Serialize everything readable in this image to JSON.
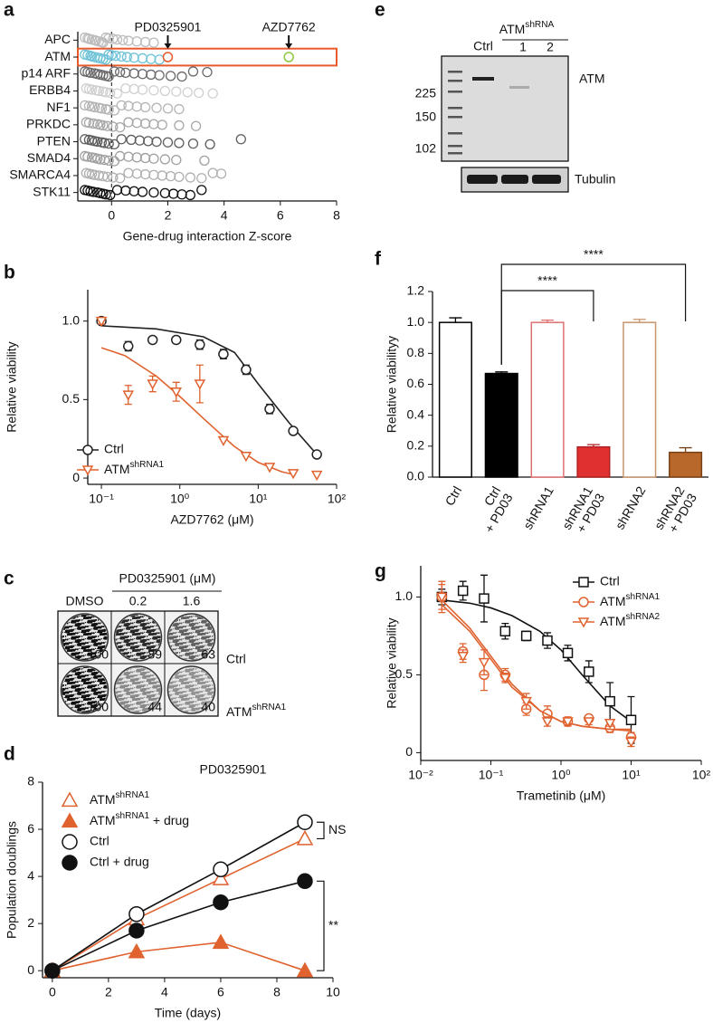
{
  "panel_labels": [
    "a",
    "b",
    "c",
    "d",
    "e",
    "f",
    "g"
  ],
  "chart_data": [
    {
      "type": "strip",
      "xlabel": "Gene-drug interaction Z-score",
      "xlim": [
        -1.2,
        8
      ],
      "xticks": [
        0,
        2,
        4,
        6,
        8
      ],
      "categories": [
        "APC",
        "ATM",
        "p14 ARF",
        "ERBB4",
        "NF1",
        "PRKDC",
        "PTEN",
        "SMAD4",
        "SMARCA4",
        "STK11"
      ],
      "colors": [
        "#bdbdbd",
        "#6fc3d8",
        "#6a6a6a",
        "#d0d0d0",
        "#b5b5b5",
        "#a8a8a8",
        "#5e5e5e",
        "#a0a0a0",
        "#b0b0b0",
        "#111111"
      ],
      "values": [
        [
          -0.95,
          -0.85,
          -0.8,
          -0.7,
          -0.6,
          -0.55,
          -0.45,
          -0.35,
          -0.3,
          -0.2,
          -0.1,
          0.05,
          0.2,
          0.4,
          0.6,
          0.9,
          1.2,
          1.5
        ],
        [
          -0.95,
          -0.85,
          -0.75,
          -0.7,
          -0.6,
          -0.5,
          -0.4,
          -0.3,
          -0.2,
          -0.1,
          0.0,
          0.15,
          0.35,
          0.55,
          0.8,
          1.1,
          1.4,
          1.7
        ],
        [
          -0.95,
          -0.85,
          -0.75,
          -0.6,
          -0.5,
          -0.4,
          -0.3,
          -0.2,
          -0.1,
          0.1,
          0.3,
          0.5,
          0.8,
          1.1,
          1.4,
          1.7,
          2.1,
          2.5,
          2.9,
          3.4
        ],
        [
          -0.9,
          -0.8,
          -0.7,
          -0.55,
          -0.45,
          -0.3,
          -0.2,
          -0.05,
          0.2,
          0.5,
          0.8,
          1.1,
          1.5,
          1.9,
          2.3,
          2.7,
          3.1,
          3.6
        ],
        [
          -0.95,
          -0.8,
          -0.7,
          -0.6,
          -0.45,
          -0.35,
          -0.2,
          -0.1,
          0.1,
          0.35,
          0.6,
          0.9,
          1.2,
          1.6,
          2.0,
          2.4
        ],
        [
          -0.9,
          -0.8,
          -0.65,
          -0.5,
          -0.4,
          -0.3,
          -0.15,
          0.05,
          0.3,
          0.6,
          0.9,
          1.2,
          1.5,
          1.8,
          2.4,
          3.0
        ],
        [
          -0.95,
          -0.8,
          -0.7,
          -0.6,
          -0.5,
          -0.35,
          -0.25,
          -0.1,
          0.1,
          0.35,
          0.7,
          1.0,
          1.3,
          1.6,
          2.0,
          2.4,
          2.9,
          3.5,
          4.6
        ],
        [
          -0.95,
          -0.85,
          -0.7,
          -0.6,
          -0.5,
          -0.4,
          -0.25,
          -0.1,
          0.1,
          0.3,
          0.6,
          0.9,
          1.2,
          1.5,
          1.9,
          2.3,
          3.3
        ],
        [
          -0.9,
          -0.8,
          -0.7,
          -0.6,
          -0.45,
          -0.3,
          -0.15,
          0.05,
          0.3,
          0.6,
          0.9,
          1.2,
          1.5,
          1.8,
          2.1,
          2.4,
          2.8,
          3.2,
          3.6,
          3.9
        ],
        [
          -0.95,
          -0.85,
          -0.75,
          -0.65,
          -0.5,
          -0.4,
          -0.3,
          -0.2,
          -0.05,
          0.2,
          0.5,
          0.8,
          1.1,
          1.5,
          1.9,
          2.2,
          2.5,
          2.8,
          3.2
        ]
      ],
      "highlight": {
        "category": "ATM",
        "color": "#e8592b"
      },
      "annotations": [
        {
          "text": "PD0325901",
          "x": 2.0,
          "color": "#e8592b"
        },
        {
          "text": "AZD7762",
          "x": 6.3,
          "color": "#8cc63f"
        }
      ]
    },
    {
      "type": "scatter",
      "xlabel": "AZD7762 (μM)",
      "ylabel": "Relative viability",
      "xscale": "log",
      "xlim": [
        0.067,
        100
      ],
      "xticks": [
        {
          "value": 0.1,
          "label": "10⁻¹"
        },
        {
          "value": 1,
          "label": "10⁰"
        },
        {
          "value": 10,
          "label": "10¹"
        },
        {
          "value": 100,
          "label": "10²"
        }
      ],
      "ylim": [
        -0.04,
        1.2
      ],
      "yticks": [
        0,
        0.5,
        {
          "value": 1,
          "label": "1.0"
        }
      ],
      "legend": "lower left",
      "series": [
        {
          "name": "Ctrl",
          "color": "#222222",
          "marker": "circle",
          "filled": false,
          "x": [
            0.1,
            0.22,
            0.45,
            0.9,
            1.8,
            3.6,
            7,
            14,
            28,
            56
          ],
          "values": [
            1.0,
            0.84,
            0.88,
            0.88,
            0.85,
            0.79,
            0.69,
            0.44,
            0.3,
            0.15
          ],
          "errors": [
            null,
            0.03,
            0.02,
            null,
            0.03,
            0.03,
            0.03,
            0.03,
            null,
            null
          ],
          "fit": {
            "x": [
              0.1,
              0.5,
              2,
              5,
              10,
              25,
              56
            ],
            "values": [
              0.97,
              0.95,
              0.9,
              0.8,
              0.6,
              0.35,
              0.15
            ]
          }
        },
        {
          "name": "ATMshRNA1",
          "color": "#e0622f",
          "marker": "triangle-down",
          "filled": false,
          "x": [
            0.1,
            0.22,
            0.45,
            0.9,
            1.8,
            3.6,
            7,
            14,
            28,
            56
          ],
          "values": [
            1.0,
            0.53,
            0.6,
            0.55,
            0.6,
            0.24,
            0.14,
            0.07,
            0.03,
            0.02
          ],
          "errors": [
            0.02,
            0.06,
            0.05,
            0.06,
            0.12,
            null,
            null,
            null,
            null,
            null
          ],
          "fit": {
            "x": [
              0.1,
              0.2,
              0.5,
              1,
              2,
              5,
              10,
              20,
              30
            ],
            "values": [
              0.83,
              0.78,
              0.65,
              0.52,
              0.38,
              0.2,
              0.1,
              0.04,
              0.02
            ]
          }
        }
      ]
    },
    {
      "type": "line",
      "title": "PD0325901",
      "xlabel": "Time (days)",
      "ylabel": "Population doublings",
      "xlim": [
        -0.35,
        10
      ],
      "xticks": [
        0,
        2,
        4,
        6,
        8,
        10
      ],
      "ylim": [
        -0.3,
        8
      ],
      "yticks": [
        0,
        2,
        4,
        6,
        8
      ],
      "legend": "upper left",
      "x": [
        0,
        3,
        6,
        9
      ],
      "series": [
        {
          "name": "ATMshRNA1",
          "color": "#e0622f",
          "marker": "triangle-up",
          "filled": false,
          "values": [
            0,
            2.2,
            3.9,
            5.6
          ]
        },
        {
          "name": "ATMshRNA1 + drug",
          "color": "#e0622f",
          "marker": "triangle-up",
          "filled": true,
          "values": [
            0,
            0.8,
            1.2,
            0
          ]
        },
        {
          "name": "Ctrl",
          "color": "#111111",
          "marker": "circle",
          "filled": false,
          "values": [
            0,
            2.4,
            4.3,
            6.3
          ]
        },
        {
          "name": "Ctrl + drug",
          "color": "#111111",
          "marker": "circle",
          "filled": true,
          "values": [
            0,
            1.7,
            2.9,
            3.8
          ]
        }
      ],
      "annotations": [
        {
          "text": "NS"
        },
        {
          "text": "**"
        }
      ]
    },
    {
      "type": "bar",
      "ylabel": "Relative viabilityy",
      "ylim": [
        0,
        1.2
      ],
      "yticks": [
        {
          "value": 0,
          "label": "0.0"
        },
        0.2,
        0.4,
        0.6,
        0.8,
        {
          "value": 1,
          "label": "1.0"
        },
        {
          "value": 1.2,
          "label": "1.2"
        }
      ],
      "categories": [
        "Ctrl",
        "Ctrl\n+ PD03",
        "shRNA1",
        "shRNA1\n+ PD03",
        "shRNA2",
        "shRNA2\n+ PD03"
      ],
      "values": [
        1.0,
        0.67,
        1.0,
        0.195,
        1.0,
        0.16
      ],
      "errors": [
        0.03,
        0.01,
        0.015,
        0.015,
        0.02,
        0.03
      ],
      "colors": [
        "#ffffff",
        "#000000",
        "#ffffff",
        "#e03030",
        "#ffffff",
        "#b8682a"
      ],
      "edge_colors": [
        "#000000",
        "#000000",
        "#e07070",
        "#b02020",
        "#c8956a",
        "#7a4015"
      ],
      "annotations": [
        {
          "text": "****"
        },
        {
          "text": "****"
        }
      ]
    },
    {
      "type": "scatter",
      "xlabel": "Trametinib (μM)",
      "ylabel": "Relative viability",
      "xscale": "log",
      "xlim": [
        0.01,
        100
      ],
      "xticks": [
        {
          "value": 0.01,
          "label": "10⁻²"
        },
        {
          "value": 0.1,
          "label": "10⁻¹"
        },
        {
          "value": 1,
          "label": "10⁰"
        },
        {
          "value": 10,
          "label": "10¹"
        },
        {
          "value": 100,
          "label": "10²"
        }
      ],
      "ylim": [
        -0.05,
        1.2
      ],
      "yticks": [
        0,
        0.5,
        {
          "value": 1,
          "label": "1.0"
        }
      ],
      "legend": "upper right",
      "series": [
        {
          "name": "Ctrl",
          "color": "#111111",
          "marker": "square",
          "filled": false,
          "x": [
            0.02,
            0.04,
            0.08,
            0.16,
            0.32,
            0.64,
            1.25,
            2.5,
            5,
            10
          ],
          "values": [
            1.0,
            1.04,
            0.99,
            0.78,
            0.75,
            0.72,
            0.64,
            0.52,
            0.33,
            0.21
          ],
          "errors": [
            0.05,
            0.06,
            0.15,
            0.05,
            0.03,
            0.05,
            0.05,
            0.07,
            0.12,
            0.15
          ],
          "fit": {
            "x": [
              0.02,
              0.05,
              0.1,
              0.2,
              0.5,
              1,
              2,
              5,
              10
            ],
            "values": [
              0.98,
              0.96,
              0.93,
              0.88,
              0.78,
              0.66,
              0.5,
              0.3,
              0.2
            ]
          }
        },
        {
          "name": "ATMshRNA1",
          "color": "#e0622f",
          "marker": "circle",
          "filled": false,
          "x": [
            0.02,
            0.04,
            0.08,
            0.16,
            0.32,
            0.64,
            1.25,
            2.5,
            5,
            10
          ],
          "values": [
            1.0,
            0.65,
            0.5,
            0.5,
            0.28,
            0.25,
            0.2,
            0.22,
            0.16,
            0.1
          ],
          "errors": [
            0.08,
            0.05,
            0.1,
            0.04,
            0.04,
            0.05,
            0.03,
            0.02,
            0.03,
            0.03
          ],
          "fit": {
            "x": [
              0.02,
              0.05,
              0.1,
              0.2,
              0.5,
              1,
              2,
              5,
              10
            ],
            "values": [
              0.95,
              0.78,
              0.6,
              0.42,
              0.27,
              0.2,
              0.17,
              0.15,
              0.15
            ]
          }
        },
        {
          "name": "ATMshRNA2",
          "color": "#e0622f",
          "marker": "triangle-down",
          "filled": false,
          "x": [
            0.02,
            0.04,
            0.08,
            0.16,
            0.32,
            0.64,
            1.25,
            2.5,
            5,
            10
          ],
          "values": [
            1.0,
            0.62,
            0.58,
            0.48,
            0.33,
            0.2,
            0.2,
            0.2,
            0.19,
            0.07
          ],
          "errors": [
            0.1,
            0.04,
            0.08,
            0.03,
            0.05,
            0.03,
            0.02,
            0.02,
            0.02,
            0.03
          ],
          "fit": {
            "x": [
              0.02,
              0.05,
              0.1,
              0.2,
              0.5,
              1,
              2,
              5,
              10
            ],
            "values": [
              0.98,
              0.8,
              0.62,
              0.44,
              0.27,
              0.2,
              0.17,
              0.15,
              0.14
            ]
          }
        }
      ]
    }
  ],
  "colony_assay": {
    "header": "PD0325901 (μM)",
    "columns": [
      "DMSO",
      "0.2",
      "1.6"
    ],
    "rows": [
      "Ctrl",
      "ATMshRNA1"
    ],
    "values": [
      [
        100,
        89,
        63
      ],
      [
        100,
        44,
        40
      ]
    ]
  },
  "western_blot": {
    "lanes": [
      "Ctrl"
    ],
    "group": {
      "label": "ATMshRNA",
      "lanes": [
        "1",
        "2"
      ]
    },
    "bands": [
      "ATM",
      "Tubulin"
    ],
    "markers": [
      225,
      150,
      102
    ]
  }
}
